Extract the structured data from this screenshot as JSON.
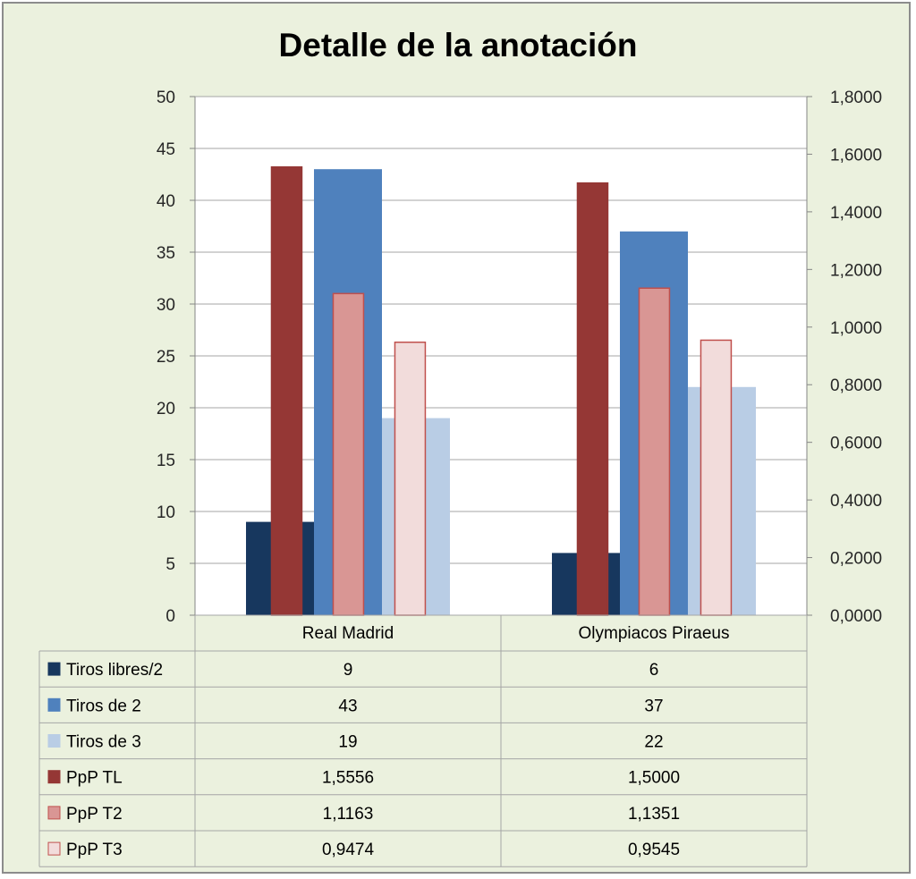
{
  "chart_data": {
    "type": "bar",
    "title": "Detalle de la anotación",
    "categories": [
      "Real Madrid",
      "Olympiacos Piraeus"
    ],
    "series": [
      {
        "name": "Tiros libres/2",
        "axis": "left",
        "values": [
          9,
          6
        ],
        "labels": [
          "9",
          "6"
        ],
        "color": "#17375e",
        "border": "#17375e"
      },
      {
        "name": "Tiros de 2",
        "axis": "left",
        "values": [
          43,
          37
        ],
        "labels": [
          "43",
          "37"
        ],
        "color": "#4f81bd",
        "border": "#4f81bd"
      },
      {
        "name": "Tiros de 3",
        "axis": "left",
        "values": [
          19,
          22
        ],
        "labels": [
          "19",
          "22"
        ],
        "color": "#b9cde5",
        "border": "#b9cde5"
      },
      {
        "name": "PpP TL",
        "axis": "right",
        "values": [
          1.5556,
          1.5
        ],
        "labels": [
          "1,5556",
          "1,5000"
        ],
        "color": "#953735",
        "border": "#953735"
      },
      {
        "name": "PpP T2",
        "axis": "right",
        "values": [
          1.1163,
          1.1351
        ],
        "labels": [
          "1,1163",
          "1,1351"
        ],
        "color": "#d99694",
        "border": "#c0504d"
      },
      {
        "name": "PpP T3",
        "axis": "right",
        "values": [
          0.9474,
          0.9545
        ],
        "labels": [
          "0,9474",
          "0,9545"
        ],
        "color": "#f2dcdb",
        "border": "#c0504d"
      }
    ],
    "y_left": {
      "ylim": [
        0,
        50
      ],
      "ticks": [
        "0",
        "5",
        "10",
        "15",
        "20",
        "25",
        "30",
        "35",
        "40",
        "45",
        "50"
      ]
    },
    "y_right": {
      "ylim": [
        0,
        1.8
      ],
      "ticks": [
        "0,0000",
        "0,2000",
        "0,4000",
        "0,6000",
        "0,8000",
        "1,0000",
        "1,2000",
        "1,4000",
        "1,6000",
        "1,8000"
      ]
    },
    "grid": true,
    "legend": "data-table"
  }
}
